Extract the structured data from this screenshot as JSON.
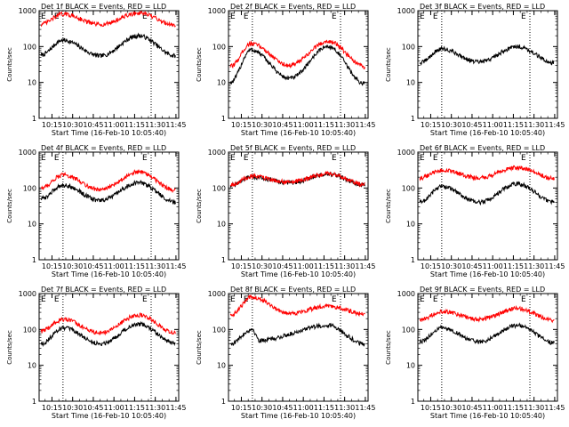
{
  "page": {
    "ylabel": "Counts/sec",
    "xlabel": "Start Time (16-Feb-10 10:05:40)",
    "x_tick_labels": [
      "10:15",
      "10:30",
      "10:45",
      "11:00",
      "11:15",
      "11:30",
      "11:45"
    ],
    "y_tick_labels": [
      "1",
      "10",
      "100",
      "1000"
    ],
    "corner_marks": [
      "E",
      "E"
    ],
    "colors": {
      "events": "#000000",
      "lld": "#ff0000"
    }
  },
  "chart_data": [
    {
      "type": "line",
      "title": "Det 1f BLACK = Events, RED = LLD",
      "xlim": [
        "10:05:40",
        "11:47:00"
      ],
      "ylim": [
        1,
        1000
      ],
      "yscale": "log",
      "markers": [
        "10:23:00",
        "11:27:00"
      ],
      "series": [
        {
          "name": "Events",
          "color": "#000000",
          "x": [
            "10:07",
            "10:23",
            "10:50",
            "11:18",
            "11:45"
          ],
          "y": [
            58,
            150,
            55,
            200,
            55
          ]
        },
        {
          "name": "LLD",
          "color": "#ff0000",
          "x": [
            "10:07",
            "10:23",
            "10:50",
            "11:18",
            "11:45"
          ],
          "y": [
            420,
            800,
            410,
            850,
            400
          ]
        }
      ]
    },
    {
      "type": "line",
      "title": "Det 2f BLACK = Events, RED = LLD",
      "xlim": [
        "10:05:40",
        "11:47:00"
      ],
      "ylim": [
        1,
        1000
      ],
      "yscale": "log",
      "markers": [
        "10:23:00",
        "11:27:00"
      ],
      "series": [
        {
          "name": "Events",
          "color": "#000000",
          "x": [
            "10:07",
            "10:22",
            "10:50",
            "11:18",
            "11:45"
          ],
          "y": [
            10,
            80,
            13,
            100,
            9
          ]
        },
        {
          "name": "LLD",
          "color": "#ff0000",
          "x": [
            "10:07",
            "10:22",
            "10:50",
            "11:18",
            "11:45"
          ],
          "y": [
            28,
            120,
            30,
            140,
            27
          ]
        }
      ]
    },
    {
      "type": "line",
      "title": "Det 3f BLACK = Events, RED = LLD",
      "xlim": [
        "10:05:40",
        "11:47:00"
      ],
      "ylim": [
        1,
        1000
      ],
      "yscale": "log",
      "markers": [
        "10:23:00",
        "11:27:00"
      ],
      "series": [
        {
          "name": "Events",
          "color": "#000000",
          "x": [
            "10:07",
            "10:23",
            "10:50",
            "11:18",
            "11:45"
          ],
          "y": [
            35,
            85,
            37,
            100,
            35
          ]
        }
      ]
    },
    {
      "type": "line",
      "title": "Det 4f BLACK = Events, RED = LLD",
      "xlim": [
        "10:05:40",
        "11:47:00"
      ],
      "ylim": [
        1,
        1000
      ],
      "yscale": "log",
      "markers": [
        "10:23:00",
        "11:27:00"
      ],
      "series": [
        {
          "name": "Events",
          "color": "#000000",
          "x": [
            "10:07",
            "10:23",
            "10:50",
            "11:18",
            "11:45"
          ],
          "y": [
            50,
            120,
            45,
            140,
            40
          ]
        },
        {
          "name": "LLD",
          "color": "#ff0000",
          "x": [
            "10:07",
            "10:23",
            "10:50",
            "11:18",
            "11:45"
          ],
          "y": [
            100,
            230,
            90,
            280,
            85
          ]
        }
      ]
    },
    {
      "type": "line",
      "title": "Det 5f BLACK = Events, RED = LLD",
      "xlim": [
        "10:05:40",
        "11:47:00"
      ],
      "ylim": [
        1,
        1000
      ],
      "yscale": "log",
      "markers": [
        "10:23:00",
        "11:27:00"
      ],
      "series": [
        {
          "name": "Events",
          "color": "#000000",
          "x": [
            "10:07",
            "10:23",
            "10:50",
            "11:18",
            "11:45"
          ],
          "y": [
            120,
            200,
            140,
            240,
            120
          ]
        },
        {
          "name": "LLD",
          "color": "#ff0000",
          "x": [
            "10:07",
            "10:23",
            "10:50",
            "11:18",
            "11:45"
          ],
          "y": [
            125,
            210,
            145,
            250,
            125
          ]
        }
      ]
    },
    {
      "type": "line",
      "title": "Det 6f BLACK = Events, RED = LLD",
      "xlim": [
        "10:05:40",
        "11:47:00"
      ],
      "ylim": [
        1,
        1000
      ],
      "yscale": "log",
      "markers": [
        "10:23:00",
        "11:27:00"
      ],
      "series": [
        {
          "name": "Events",
          "color": "#000000",
          "x": [
            "10:07",
            "10:23",
            "10:50",
            "11:18",
            "11:45"
          ],
          "y": [
            40,
            110,
            40,
            130,
            40
          ]
        },
        {
          "name": "LLD",
          "color": "#ff0000",
          "x": [
            "10:07",
            "10:23",
            "10:50",
            "11:18",
            "11:45"
          ],
          "y": [
            190,
            310,
            190,
            370,
            185
          ]
        }
      ]
    },
    {
      "type": "line",
      "title": "Det 7f BLACK = Events, RED = LLD",
      "xlim": [
        "10:05:40",
        "11:47:00"
      ],
      "ylim": [
        1,
        1000
      ],
      "yscale": "log",
      "markers": [
        "10:23:00",
        "11:27:00"
      ],
      "series": [
        {
          "name": "Events",
          "color": "#000000",
          "x": [
            "10:07",
            "10:23",
            "10:50",
            "11:18",
            "11:45"
          ],
          "y": [
            40,
            110,
            40,
            140,
            40
          ]
        },
        {
          "name": "LLD",
          "color": "#ff0000",
          "x": [
            "10:07",
            "10:23",
            "10:50",
            "11:18",
            "11:45"
          ],
          "y": [
            90,
            190,
            80,
            250,
            80
          ]
        }
      ]
    },
    {
      "type": "line",
      "title": "Det 8f BLACK = Events, RED = LLD",
      "xlim": [
        "10:05:40",
        "11:47:00"
      ],
      "ylim": [
        1,
        1000
      ],
      "yscale": "log",
      "markers": [
        "10:23:00",
        "11:27:00"
      ],
      "series": [
        {
          "name": "Events",
          "color": "#000000",
          "x": [
            "10:07",
            "10:23",
            "10:28",
            "11:18",
            "11:45"
          ],
          "y": [
            40,
            100,
            50,
            130,
            38
          ]
        },
        {
          "name": "LLD",
          "color": "#ff0000",
          "x": [
            "10:07",
            "10:23",
            "10:50",
            "11:18",
            "11:45"
          ],
          "y": [
            250,
            800,
            280,
            450,
            270
          ]
        }
      ]
    },
    {
      "type": "line",
      "title": "Det 9f BLACK = Events, RED = LLD",
      "xlim": [
        "10:05:40",
        "11:47:00"
      ],
      "ylim": [
        1,
        1000
      ],
      "yscale": "log",
      "markers": [
        "10:23:00",
        "11:27:00"
      ],
      "series": [
        {
          "name": "Events",
          "color": "#000000",
          "x": [
            "10:07",
            "10:23",
            "10:50",
            "11:18",
            "11:45"
          ],
          "y": [
            45,
            110,
            45,
            130,
            42
          ]
        },
        {
          "name": "LLD",
          "color": "#ff0000",
          "x": [
            "10:07",
            "10:23",
            "10:50",
            "11:18",
            "11:45"
          ],
          "y": [
            180,
            320,
            190,
            380,
            180
          ]
        }
      ]
    }
  ]
}
